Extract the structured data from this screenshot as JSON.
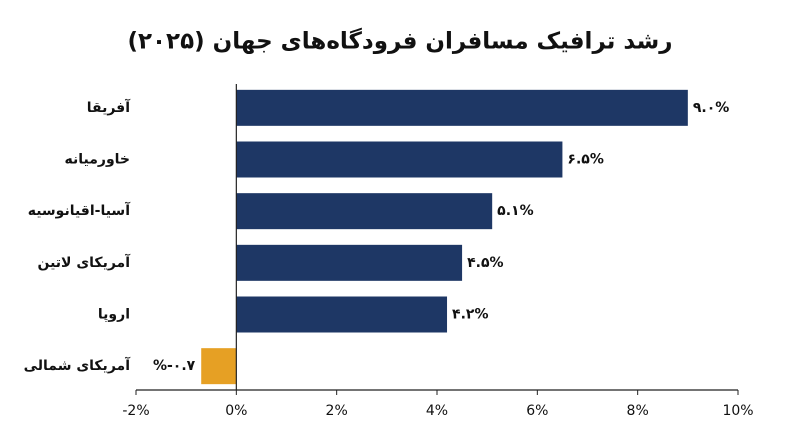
{
  "chart_data": {
    "type": "bar",
    "orientation": "horizontal",
    "title": "رشد ترافیک مسافران فرودگاه‌های جهان (۲۰۲۵)",
    "categories": [
      "آفریقا",
      "خاورمیانه",
      "آسیا-اقیانوسیه",
      "آمریکای لاتین",
      "اروپا",
      "آمریکای شمالی"
    ],
    "values": [
      9.0,
      6.5,
      5.1,
      4.5,
      4.2,
      -0.7
    ],
    "value_labels": [
      "۹.۰%",
      "۶.۵%",
      "۵.۱%",
      "۴.۵%",
      "۴.۲%",
      "%-۰.۷"
    ],
    "colors": [
      "#1e3765",
      "#1e3765",
      "#1e3765",
      "#1e3765",
      "#1e3765",
      "#e6a024"
    ],
    "xlim": [
      -2,
      10
    ],
    "xticks": [
      {
        "value": -2,
        "label": "-2%"
      },
      {
        "value": 0,
        "label": "0%"
      },
      {
        "value": 2,
        "label": "2%"
      },
      {
        "value": 4,
        "label": "4%"
      },
      {
        "value": 6,
        "label": "6%"
      },
      {
        "value": 8,
        "label": "8%"
      },
      {
        "value": 10,
        "label": "10%"
      }
    ],
    "grid": false
  }
}
